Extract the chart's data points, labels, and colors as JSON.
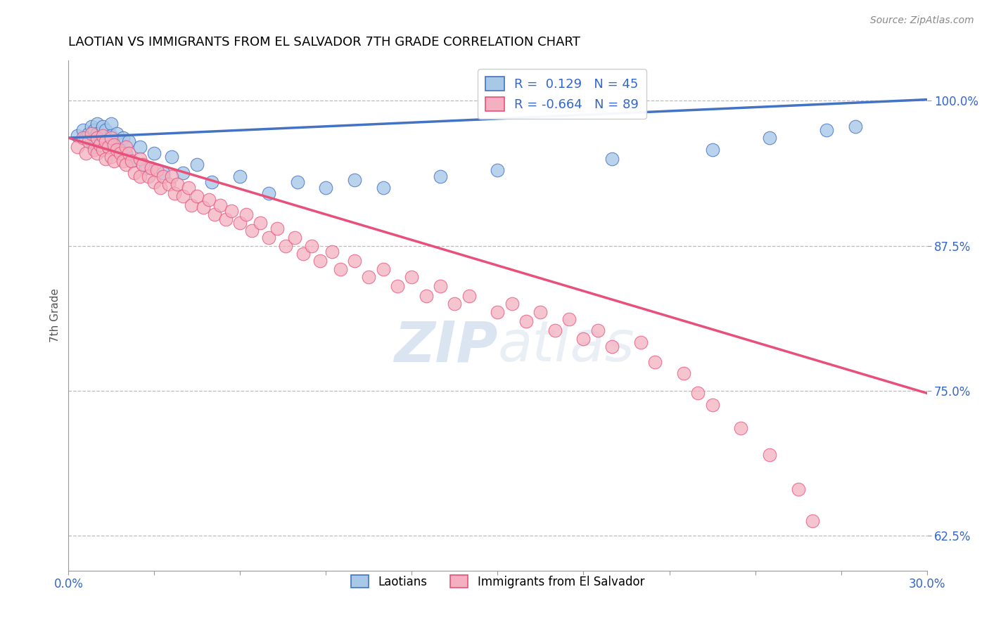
{
  "title": "LAOTIAN VS IMMIGRANTS FROM EL SALVADOR 7TH GRADE CORRELATION CHART",
  "source_text": "Source: ZipAtlas.com",
  "ylabel": "7th Grade",
  "xlim": [
    0.0,
    0.3
  ],
  "ylim": [
    0.595,
    1.035
  ],
  "xticks": [
    0.0,
    0.03,
    0.06,
    0.09,
    0.12,
    0.15,
    0.18,
    0.21,
    0.24,
    0.27,
    0.3
  ],
  "xticklabels": [
    "0.0%",
    "",
    "",
    "",
    "",
    "",
    "",
    "",
    "",
    "",
    "30.0%"
  ],
  "ytick_positions": [
    0.625,
    0.75,
    0.875,
    1.0
  ],
  "ytick_labels": [
    "62.5%",
    "75.0%",
    "87.5%",
    "100.0%"
  ],
  "blue_R": 0.129,
  "blue_N": 45,
  "pink_R": -0.664,
  "pink_N": 89,
  "blue_color": "#a8c8e8",
  "pink_color": "#f4b0c0",
  "blue_line_color": "#4472c4",
  "pink_line_color": "#e8507a",
  "legend_label_blue": "Laotians",
  "legend_label_pink": "Immigrants from El Salvador",
  "watermark_zip": "ZIP",
  "watermark_atlas": "atlas",
  "title_fontsize": 13,
  "axis_label_color": "#3366cc",
  "blue_x": [
    0.003,
    0.005,
    0.006,
    0.007,
    0.008,
    0.008,
    0.009,
    0.009,
    0.01,
    0.01,
    0.011,
    0.012,
    0.012,
    0.013,
    0.014,
    0.015,
    0.015,
    0.016,
    0.017,
    0.018,
    0.019,
    0.02,
    0.021,
    0.022,
    0.025,
    0.027,
    0.03,
    0.033,
    0.036,
    0.04,
    0.045,
    0.05,
    0.06,
    0.07,
    0.08,
    0.09,
    0.1,
    0.11,
    0.13,
    0.15,
    0.19,
    0.225,
    0.245,
    0.265,
    0.275
  ],
  "blue_y": [
    0.97,
    0.975,
    0.968,
    0.972,
    0.978,
    0.965,
    0.975,
    0.96,
    0.98,
    0.972,
    0.965,
    0.978,
    0.968,
    0.975,
    0.96,
    0.98,
    0.97,
    0.962,
    0.972,
    0.958,
    0.968,
    0.955,
    0.965,
    0.948,
    0.96,
    0.942,
    0.955,
    0.938,
    0.952,
    0.938,
    0.945,
    0.93,
    0.935,
    0.92,
    0.93,
    0.925,
    0.932,
    0.925,
    0.935,
    0.94,
    0.95,
    0.958,
    0.968,
    0.975,
    0.978
  ],
  "pink_x": [
    0.003,
    0.005,
    0.006,
    0.007,
    0.008,
    0.009,
    0.01,
    0.01,
    0.011,
    0.012,
    0.012,
    0.013,
    0.013,
    0.014,
    0.015,
    0.015,
    0.016,
    0.016,
    0.017,
    0.018,
    0.019,
    0.02,
    0.02,
    0.021,
    0.022,
    0.023,
    0.025,
    0.025,
    0.026,
    0.028,
    0.029,
    0.03,
    0.031,
    0.032,
    0.033,
    0.035,
    0.036,
    0.037,
    0.038,
    0.04,
    0.042,
    0.043,
    0.045,
    0.047,
    0.049,
    0.051,
    0.053,
    0.055,
    0.057,
    0.06,
    0.062,
    0.064,
    0.067,
    0.07,
    0.073,
    0.076,
    0.079,
    0.082,
    0.085,
    0.088,
    0.092,
    0.095,
    0.1,
    0.105,
    0.11,
    0.115,
    0.12,
    0.125,
    0.13,
    0.135,
    0.14,
    0.15,
    0.155,
    0.16,
    0.165,
    0.17,
    0.175,
    0.18,
    0.185,
    0.19,
    0.2,
    0.205,
    0.215,
    0.22,
    0.225,
    0.235,
    0.245,
    0.255,
    0.26
  ],
  "pink_y": [
    0.96,
    0.968,
    0.955,
    0.965,
    0.972,
    0.958,
    0.968,
    0.955,
    0.962,
    0.97,
    0.958,
    0.965,
    0.95,
    0.96,
    0.968,
    0.952,
    0.962,
    0.948,
    0.958,
    0.955,
    0.948,
    0.96,
    0.945,
    0.955,
    0.948,
    0.938,
    0.95,
    0.935,
    0.945,
    0.935,
    0.942,
    0.93,
    0.94,
    0.925,
    0.935,
    0.928,
    0.935,
    0.92,
    0.928,
    0.918,
    0.925,
    0.91,
    0.918,
    0.908,
    0.915,
    0.902,
    0.91,
    0.898,
    0.905,
    0.895,
    0.902,
    0.888,
    0.895,
    0.882,
    0.89,
    0.875,
    0.882,
    0.868,
    0.875,
    0.862,
    0.87,
    0.855,
    0.862,
    0.848,
    0.855,
    0.84,
    0.848,
    0.832,
    0.84,
    0.825,
    0.832,
    0.818,
    0.825,
    0.81,
    0.818,
    0.802,
    0.812,
    0.795,
    0.802,
    0.788,
    0.792,
    0.775,
    0.765,
    0.748,
    0.738,
    0.718,
    0.695,
    0.665,
    0.638
  ],
  "blue_trendline_x": [
    0.0,
    0.3
  ],
  "blue_trendline_y": [
    0.968,
    1.001
  ],
  "pink_trendline_x": [
    0.0,
    0.3
  ],
  "pink_trendline_y": [
    0.968,
    0.748
  ]
}
